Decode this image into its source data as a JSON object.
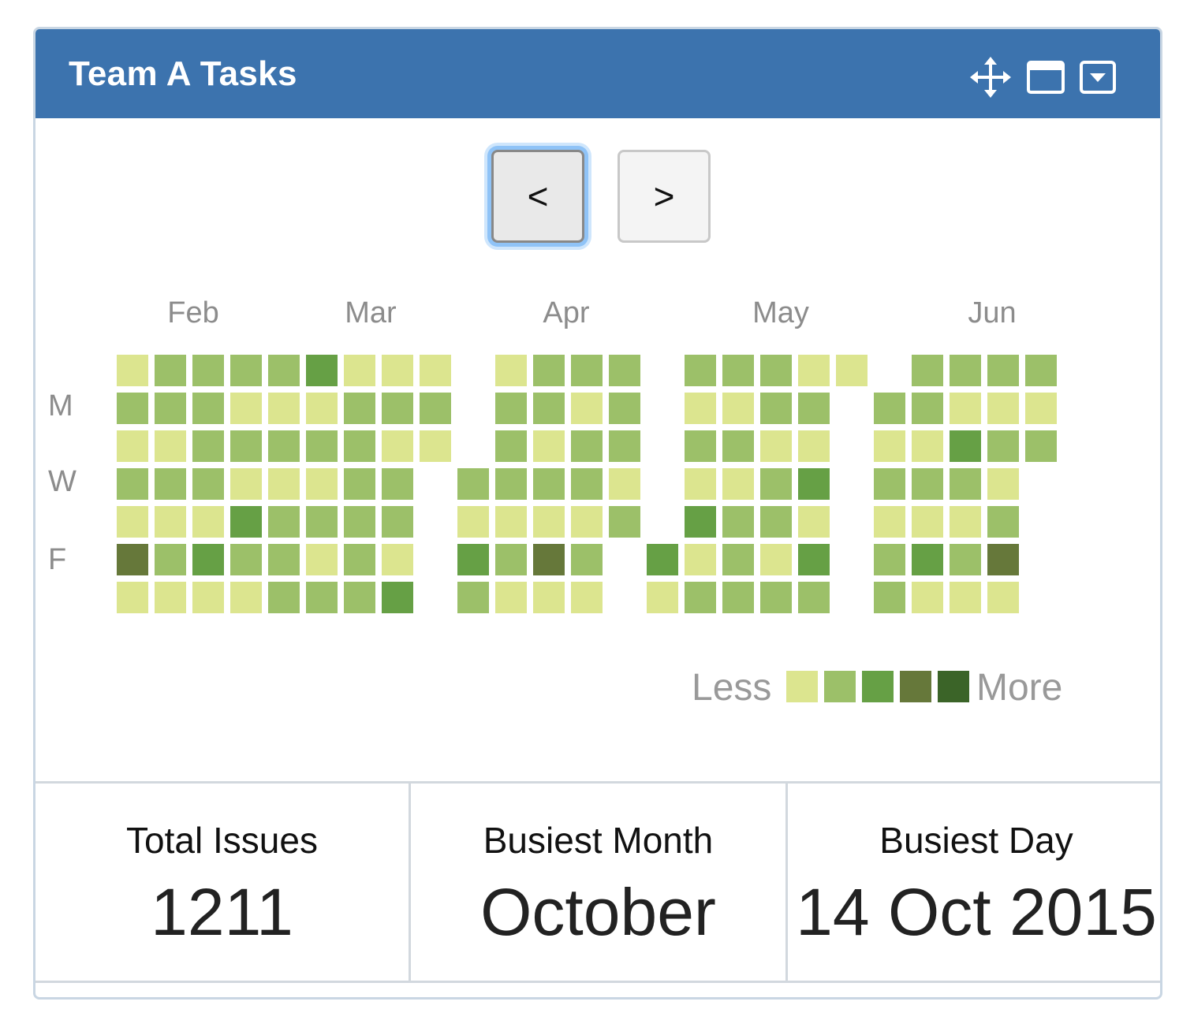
{
  "widget": {
    "title": "Team A Tasks",
    "icons": [
      "move-icon",
      "maximize-icon",
      "collapse-icon"
    ]
  },
  "nav": {
    "prev_label": "<",
    "next_label": ">"
  },
  "heatmap": {
    "months": [
      "Feb",
      "Mar",
      "Apr",
      "May",
      "Jun"
    ],
    "day_labels": [
      "M",
      "W",
      "F"
    ],
    "colors": [
      "#dce58f",
      "#9cc069",
      "#66a045",
      "#66783a",
      "#3b6428"
    ],
    "weeks": [
      [
        0,
        1,
        0,
        1,
        0,
        3,
        0
      ],
      [
        1,
        1,
        0,
        1,
        0,
        1,
        0
      ],
      [
        1,
        1,
        1,
        1,
        0,
        2,
        0
      ],
      [
        1,
        0,
        1,
        0,
        2,
        1,
        0
      ],
      [
        1,
        0,
        1,
        0,
        1,
        1,
        1
      ],
      [
        2,
        0,
        1,
        0,
        1,
        0,
        1
      ],
      [
        0,
        1,
        1,
        1,
        1,
        1,
        1
      ],
      [
        0,
        1,
        0,
        1,
        1,
        0,
        2
      ],
      [
        0,
        1,
        0,
        null,
        null,
        null,
        null
      ],
      [
        null,
        null,
        null,
        1,
        0,
        2,
        1
      ],
      [
        0,
        1,
        1,
        1,
        0,
        1,
        0
      ],
      [
        1,
        1,
        0,
        1,
        0,
        3,
        0
      ],
      [
        1,
        0,
        1,
        1,
        0,
        1,
        0
      ],
      [
        1,
        1,
        1,
        0,
        1,
        null,
        null
      ],
      [
        null,
        null,
        null,
        null,
        null,
        2,
        0
      ],
      [
        1,
        0,
        1,
        0,
        2,
        0,
        1
      ],
      [
        1,
        0,
        1,
        0,
        1,
        1,
        1
      ],
      [
        1,
        1,
        0,
        1,
        1,
        0,
        1
      ],
      [
        0,
        1,
        0,
        2,
        0,
        2,
        1
      ],
      [
        0,
        null,
        null,
        null,
        null,
        null,
        null
      ],
      [
        null,
        1,
        0,
        1,
        0,
        1,
        1
      ],
      [
        1,
        1,
        0,
        1,
        0,
        2,
        0
      ],
      [
        1,
        0,
        2,
        1,
        0,
        1,
        0
      ],
      [
        1,
        0,
        1,
        0,
        1,
        3,
        0
      ],
      [
        1,
        0,
        1,
        null,
        null,
        null,
        null
      ]
    ]
  },
  "legend": {
    "less": "Less",
    "more": "More",
    "levels": [
      0,
      1,
      2,
      3,
      4
    ]
  },
  "stats": [
    {
      "label": "Total Issues",
      "value": "1211"
    },
    {
      "label": "Busiest Month",
      "value": "October"
    },
    {
      "label": "Busiest Day",
      "value": "14 Oct 2015"
    }
  ]
}
